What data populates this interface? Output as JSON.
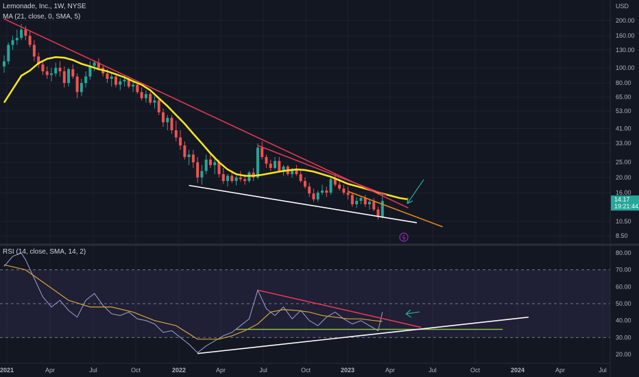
{
  "price_panel": {
    "title": "Lemonade, Inc., 1W, NYSE",
    "ma_label": "MA (21, close, 0, SMA, 5)",
    "currency": "USD",
    "last_price": "14.17",
    "countdown": "19:21:44"
  },
  "rsi_panel": {
    "title": "RSI (14, close, SMA, 14, 2)"
  },
  "colors": {
    "background": "#131722",
    "up": "#26a69a",
    "down": "#ef5350",
    "ma": "#f5e51b",
    "rsi": "#9598c8",
    "rsi_ma": "#d9a63a",
    "resistance": "#e03a53",
    "support": "#ffffff",
    "projection": "#e58a1e",
    "rsi_flat": "#8bc34a",
    "arrow": "#26a69a"
  },
  "chart_data": [
    {
      "type": "candlestick",
      "title": "Lemonade, Inc., 1W, NYSE",
      "scale": "log",
      "y_ticks": [
        200,
        160,
        130,
        100,
        80,
        65,
        53,
        41,
        33,
        25,
        20,
        16,
        14.17,
        10.5,
        8.5
      ],
      "y_tick_labels": [
        "200.00",
        "160.00",
        "130.00",
        "100.00",
        "80.00",
        "65.00",
        "53.00",
        "41.00",
        "33.00",
        "25.00",
        "20.00",
        "16.00",
        "14.17",
        "10.50",
        "8.50"
      ],
      "x_ticks": [
        "2021",
        "Apr",
        "Jul",
        "Oct",
        "2022",
        "Apr",
        "Jul",
        "Oct",
        "2023",
        "Apr",
        "Jul",
        "Oct",
        "2024",
        "Apr",
        "Jul"
      ],
      "ylim": [
        7.6,
        230
      ],
      "series": [
        {
          "name": "MA (21, close, 0, SMA, 5)",
          "points": [
            [
              0,
              60
            ],
            [
              2,
              73
            ],
            [
              4,
              89
            ],
            [
              6,
              96
            ],
            [
              8,
              107
            ],
            [
              10,
              114
            ],
            [
              12,
              117
            ],
            [
              14,
              116
            ],
            [
              16,
              112
            ],
            [
              18,
              106
            ],
            [
              20,
              102
            ],
            [
              22,
              98
            ],
            [
              24,
              95
            ],
            [
              26,
              91
            ],
            [
              28,
              87
            ],
            [
              30,
              82
            ],
            [
              32,
              78
            ],
            [
              34,
              72
            ],
            [
              36,
              64
            ],
            [
              38,
              57
            ],
            [
              40,
              50
            ],
            [
              42,
              44
            ],
            [
              44,
              38
            ],
            [
              46,
              33
            ],
            [
              48,
              28.5
            ],
            [
              50,
              25
            ],
            [
              52,
              22.5
            ],
            [
              54,
              21
            ],
            [
              56,
              20.5
            ],
            [
              58,
              20.5
            ],
            [
              60,
              20.8
            ],
            [
              62,
              21.3
            ],
            [
              64,
              21.8
            ],
            [
              66,
              22.2
            ],
            [
              68,
              22.5
            ],
            [
              70,
              22.3
            ],
            [
              72,
              21.8
            ],
            [
              74,
              21
            ],
            [
              76,
              20.2
            ],
            [
              78,
              19.2
            ],
            [
              80,
              18.2
            ],
            [
              82,
              17.6
            ],
            [
              84,
              17
            ],
            [
              86,
              16.4
            ],
            [
              88,
              15.8
            ],
            [
              90,
              15.3
            ],
            [
              92,
              14.8
            ],
            [
              94,
              14.5
            ]
          ]
        }
      ],
      "candles": [
        [
          0,
          102,
          120,
          93,
          110
        ],
        [
          1,
          110,
          145,
          105,
          140
        ],
        [
          2,
          140,
          160,
          130,
          150
        ],
        [
          3,
          150,
          175,
          140,
          155
        ],
        [
          4,
          155,
          190,
          150,
          175
        ],
        [
          5,
          175,
          185,
          150,
          160
        ],
        [
          6,
          160,
          170,
          135,
          140
        ],
        [
          7,
          140,
          150,
          110,
          118
        ],
        [
          8,
          118,
          125,
          100,
          105
        ],
        [
          9,
          105,
          110,
          90,
          95
        ],
        [
          10,
          95,
          102,
          85,
          90
        ],
        [
          11,
          90,
          100,
          82,
          92
        ],
        [
          12,
          92,
          108,
          88,
          100
        ],
        [
          13,
          100,
          110,
          88,
          95
        ],
        [
          14,
          95,
          102,
          75,
          80
        ],
        [
          15,
          80,
          100,
          76,
          98
        ],
        [
          16,
          98,
          105,
          85,
          88
        ],
        [
          17,
          88,
          92,
          64,
          70
        ],
        [
          18,
          70,
          85,
          66,
          80
        ],
        [
          19,
          80,
          95,
          75,
          88
        ],
        [
          20,
          88,
          110,
          84,
          103
        ],
        [
          21,
          103,
          112,
          95,
          108
        ],
        [
          22,
          108,
          115,
          96,
          100
        ],
        [
          23,
          100,
          105,
          88,
          92
        ],
        [
          24,
          92,
          98,
          80,
          85
        ],
        [
          25,
          85,
          92,
          76,
          88
        ],
        [
          26,
          88,
          90,
          75,
          78
        ],
        [
          27,
          78,
          86,
          72,
          82
        ],
        [
          28,
          82,
          90,
          76,
          84
        ],
        [
          29,
          84,
          88,
          74,
          76
        ],
        [
          30,
          76,
          82,
          70,
          78
        ],
        [
          31,
          78,
          80,
          68,
          70
        ],
        [
          32,
          70,
          75,
          62,
          64
        ],
        [
          33,
          64,
          72,
          60,
          68
        ],
        [
          34,
          68,
          70,
          58,
          60
        ],
        [
          35,
          60,
          66,
          55,
          62
        ],
        [
          36,
          62,
          64,
          50,
          52
        ],
        [
          37,
          52,
          55,
          42,
          45
        ],
        [
          38,
          45,
          50,
          40,
          48
        ],
        [
          39,
          48,
          50,
          38,
          40
        ],
        [
          40,
          40,
          46,
          34,
          36
        ],
        [
          41,
          36,
          40,
          30,
          32
        ],
        [
          42,
          32,
          34,
          26,
          27
        ],
        [
          43,
          27,
          30,
          24,
          28
        ],
        [
          44,
          28,
          30,
          23,
          25
        ],
        [
          45,
          25,
          27,
          18.5,
          20
        ],
        [
          46,
          20,
          24,
          18,
          22
        ],
        [
          47,
          22,
          28,
          21,
          26
        ],
        [
          48,
          26,
          29,
          23,
          24
        ],
        [
          49,
          24,
          27,
          21,
          25
        ],
        [
          50,
          25,
          26,
          20,
          21
        ],
        [
          51,
          21,
          23,
          18.2,
          19
        ],
        [
          52,
          19,
          21,
          17.5,
          20.5
        ],
        [
          53,
          20.5,
          22,
          18.5,
          19
        ],
        [
          54,
          19,
          20.5,
          17.8,
          20
        ],
        [
          55,
          20,
          22,
          18.8,
          19.5
        ],
        [
          56,
          19.5,
          21,
          18,
          19
        ],
        [
          57,
          19,
          22,
          18.5,
          21.5
        ],
        [
          58,
          21.5,
          23,
          19,
          20
        ],
        [
          59,
          20,
          33,
          19.5,
          31
        ],
        [
          60,
          31,
          34,
          26,
          27
        ],
        [
          61,
          27,
          28,
          23,
          24.5
        ],
        [
          62,
          24.5,
          26,
          22,
          23
        ],
        [
          63,
          23,
          27,
          22.5,
          25.5
        ],
        [
          64,
          25.5,
          27,
          21.5,
          22
        ],
        [
          65,
          22,
          24,
          20.5,
          23.5
        ],
        [
          66,
          23.5,
          24,
          20.5,
          21
        ],
        [
          67,
          21,
          23,
          20,
          22.5
        ],
        [
          68,
          22.5,
          24,
          20.5,
          21
        ],
        [
          69,
          21,
          22,
          18.5,
          19
        ],
        [
          70,
          19,
          20,
          17,
          17.5
        ],
        [
          71,
          17.5,
          18.5,
          15,
          15.8
        ],
        [
          72,
          15.8,
          17,
          14,
          14.5
        ],
        [
          73,
          14.5,
          16.5,
          14,
          16
        ],
        [
          74,
          16,
          18,
          15.5,
          16.5
        ],
        [
          75,
          16.5,
          17.5,
          15,
          16
        ],
        [
          76,
          16,
          20,
          15.5,
          19.5
        ],
        [
          77,
          19.5,
          21,
          17.5,
          18
        ],
        [
          78,
          18,
          19.5,
          16.5,
          17
        ],
        [
          79,
          17,
          18,
          15.5,
          16
        ],
        [
          80,
          16,
          17.5,
          14.5,
          15.5
        ],
        [
          81,
          15.5,
          16,
          13,
          13.5
        ],
        [
          82,
          13.5,
          15,
          12.8,
          14.2
        ],
        [
          83,
          14.2,
          15,
          13.5,
          14.8
        ],
        [
          84,
          14.8,
          15.5,
          13,
          13.5
        ],
        [
          85,
          13.5,
          14.5,
          12.5,
          14
        ],
        [
          86,
          14,
          14.8,
          12.2,
          12.5
        ],
        [
          87,
          12.5,
          13,
          10.8,
          11.2
        ],
        [
          88,
          11.2,
          16,
          11,
          14.17
        ]
      ],
      "drawings": [
        {
          "kind": "resistance",
          "from": [
            0,
            205
          ],
          "to": [
            94,
            12.8
          ]
        },
        {
          "kind": "resistance-short",
          "from": [
            59,
            32
          ],
          "to": [
            89,
            15.4
          ]
        },
        {
          "kind": "projection",
          "from": [
            80,
            16.3
          ],
          "to": [
            102,
            9.7
          ]
        },
        {
          "kind": "support",
          "from": [
            43,
            17.8
          ],
          "to": [
            96,
            10.3
          ]
        }
      ]
    },
    {
      "type": "line",
      "title": "RSI (14, close, SMA, 14, 2)",
      "y_ticks": [
        80,
        70,
        60,
        50,
        40,
        30,
        20
      ],
      "y_tick_labels": [
        "80.00",
        "70.00",
        "60.00",
        "50.00",
        "40.00",
        "30.00",
        "20.00"
      ],
      "ylim": [
        16,
        87
      ],
      "band": [
        30,
        70
      ],
      "middle": 50,
      "series": [
        {
          "name": "RSI",
          "points": [
            [
              0,
              72
            ],
            [
              2,
              78
            ],
            [
              4,
              80
            ],
            [
              5,
              76
            ],
            [
              7,
              65
            ],
            [
              9,
              54
            ],
            [
              11,
              48
            ],
            [
              13,
              52
            ],
            [
              15,
              46
            ],
            [
              17,
              42
            ],
            [
              19,
              52
            ],
            [
              21,
              56
            ],
            [
              23,
              49
            ],
            [
              25,
              44
            ],
            [
              27,
              43
            ],
            [
              29,
              45
            ],
            [
              31,
              41
            ],
            [
              33,
              40
            ],
            [
              35,
              38
            ],
            [
              37,
              33
            ],
            [
              39,
              34
            ],
            [
              41,
              30
            ],
            [
              43,
              26
            ],
            [
              45,
              21
            ],
            [
              47,
              25
            ],
            [
              49,
              28
            ],
            [
              51,
              31
            ],
            [
              53,
              33
            ],
            [
              55,
              37
            ],
            [
              57,
              41
            ],
            [
              59,
              58
            ],
            [
              61,
              47
            ],
            [
              63,
              43
            ],
            [
              65,
              48
            ],
            [
              67,
              41
            ],
            [
              69,
              46
            ],
            [
              71,
              40
            ],
            [
              73,
              37
            ],
            [
              75,
              42
            ],
            [
              77,
              45
            ],
            [
              79,
              41
            ],
            [
              81,
              38
            ],
            [
              83,
              40
            ],
            [
              85,
              37
            ],
            [
              87,
              34
            ],
            [
              88,
              45
            ]
          ]
        },
        {
          "name": "RSI-based MA",
          "points": [
            [
              0,
              73
            ],
            [
              5,
              70
            ],
            [
              10,
              61
            ],
            [
              15,
              52
            ],
            [
              20,
              48
            ],
            [
              25,
              48
            ],
            [
              30,
              45
            ],
            [
              35,
              40
            ],
            [
              40,
              37
            ],
            [
              45,
              29
            ],
            [
              50,
              29
            ],
            [
              53,
              31
            ],
            [
              56,
              34
            ],
            [
              59,
              38
            ],
            [
              62,
              45
            ],
            [
              65,
              46.5
            ],
            [
              68,
              46
            ],
            [
              71,
              45
            ],
            [
              74,
              43
            ],
            [
              77,
              42
            ],
            [
              80,
              41
            ],
            [
              83,
              41
            ],
            [
              86,
              40
            ],
            [
              88,
              39.5
            ]
          ]
        }
      ],
      "drawings": [
        {
          "kind": "resistance",
          "from": [
            59,
            58
          ],
          "to": [
            97,
            36
          ]
        },
        {
          "kind": "flat",
          "from": [
            54,
            34.8
          ],
          "to": [
            116,
            34.8
          ]
        },
        {
          "kind": "support",
          "from": [
            45,
            20.5
          ],
          "to": [
            122,
            42
          ]
        }
      ]
    }
  ]
}
